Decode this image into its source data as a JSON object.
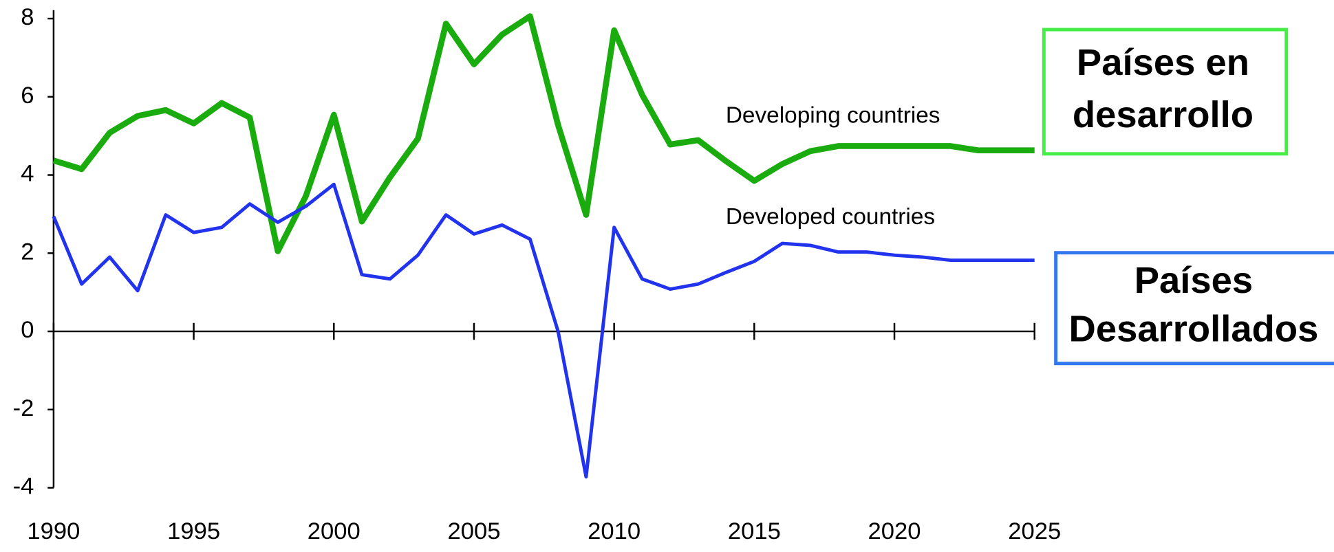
{
  "chart_data": {
    "type": "line",
    "x": [
      1990,
      1991,
      1992,
      1993,
      1994,
      1995,
      1996,
      1997,
      1998,
      1999,
      2000,
      2001,
      2002,
      2003,
      2004,
      2005,
      2006,
      2007,
      2008,
      2009,
      2010,
      2011,
      2012,
      2013,
      2014,
      2015,
      2016,
      2017,
      2018,
      2019,
      2020,
      2021,
      2022,
      2023,
      2024,
      2025
    ],
    "series": [
      {
        "name": "Developing countries",
        "color": "#1aab0e",
        "values": [
          4.37,
          4.15,
          5.08,
          5.51,
          5.66,
          5.32,
          5.84,
          5.47,
          2.05,
          3.46,
          5.54,
          2.81,
          3.94,
          4.93,
          7.87,
          6.83,
          7.59,
          8.06,
          5.28,
          2.98,
          7.7,
          6.05,
          4.78,
          4.89,
          4.35,
          3.85,
          4.28,
          4.61,
          4.74,
          4.74,
          4.74,
          4.74,
          4.74,
          4.63,
          4.63,
          4.63
        ]
      },
      {
        "name": "Developed countries",
        "color": "#2233ee",
        "values": [
          2.94,
          1.21,
          1.9,
          1.04,
          2.98,
          2.53,
          2.66,
          3.26,
          2.79,
          3.2,
          3.76,
          1.45,
          1.34,
          1.95,
          2.98,
          2.49,
          2.72,
          2.36,
          0,
          -3.72,
          2.66,
          1.34,
          1.08,
          1.21,
          1.51,
          1.79,
          2.25,
          2.2,
          2.03,
          2.03,
          1.95,
          1.9,
          1.82,
          1.82,
          1.82,
          1.82
        ]
      }
    ],
    "xlim": [
      1990,
      2025
    ],
    "xticks": [
      1990,
      1995,
      2000,
      2005,
      2010,
      2015,
      2020,
      2025
    ],
    "ylim": [
      -4,
      8
    ],
    "yticks": [
      -4,
      -2,
      0,
      2,
      4,
      6,
      8
    ],
    "annotations": [
      {
        "lines": [
          "Países en",
          "desarrollo"
        ],
        "color": "#44ee44"
      },
      {
        "lines": [
          "Países",
          "Desarrollados"
        ],
        "color": "#3377ee"
      }
    ]
  }
}
